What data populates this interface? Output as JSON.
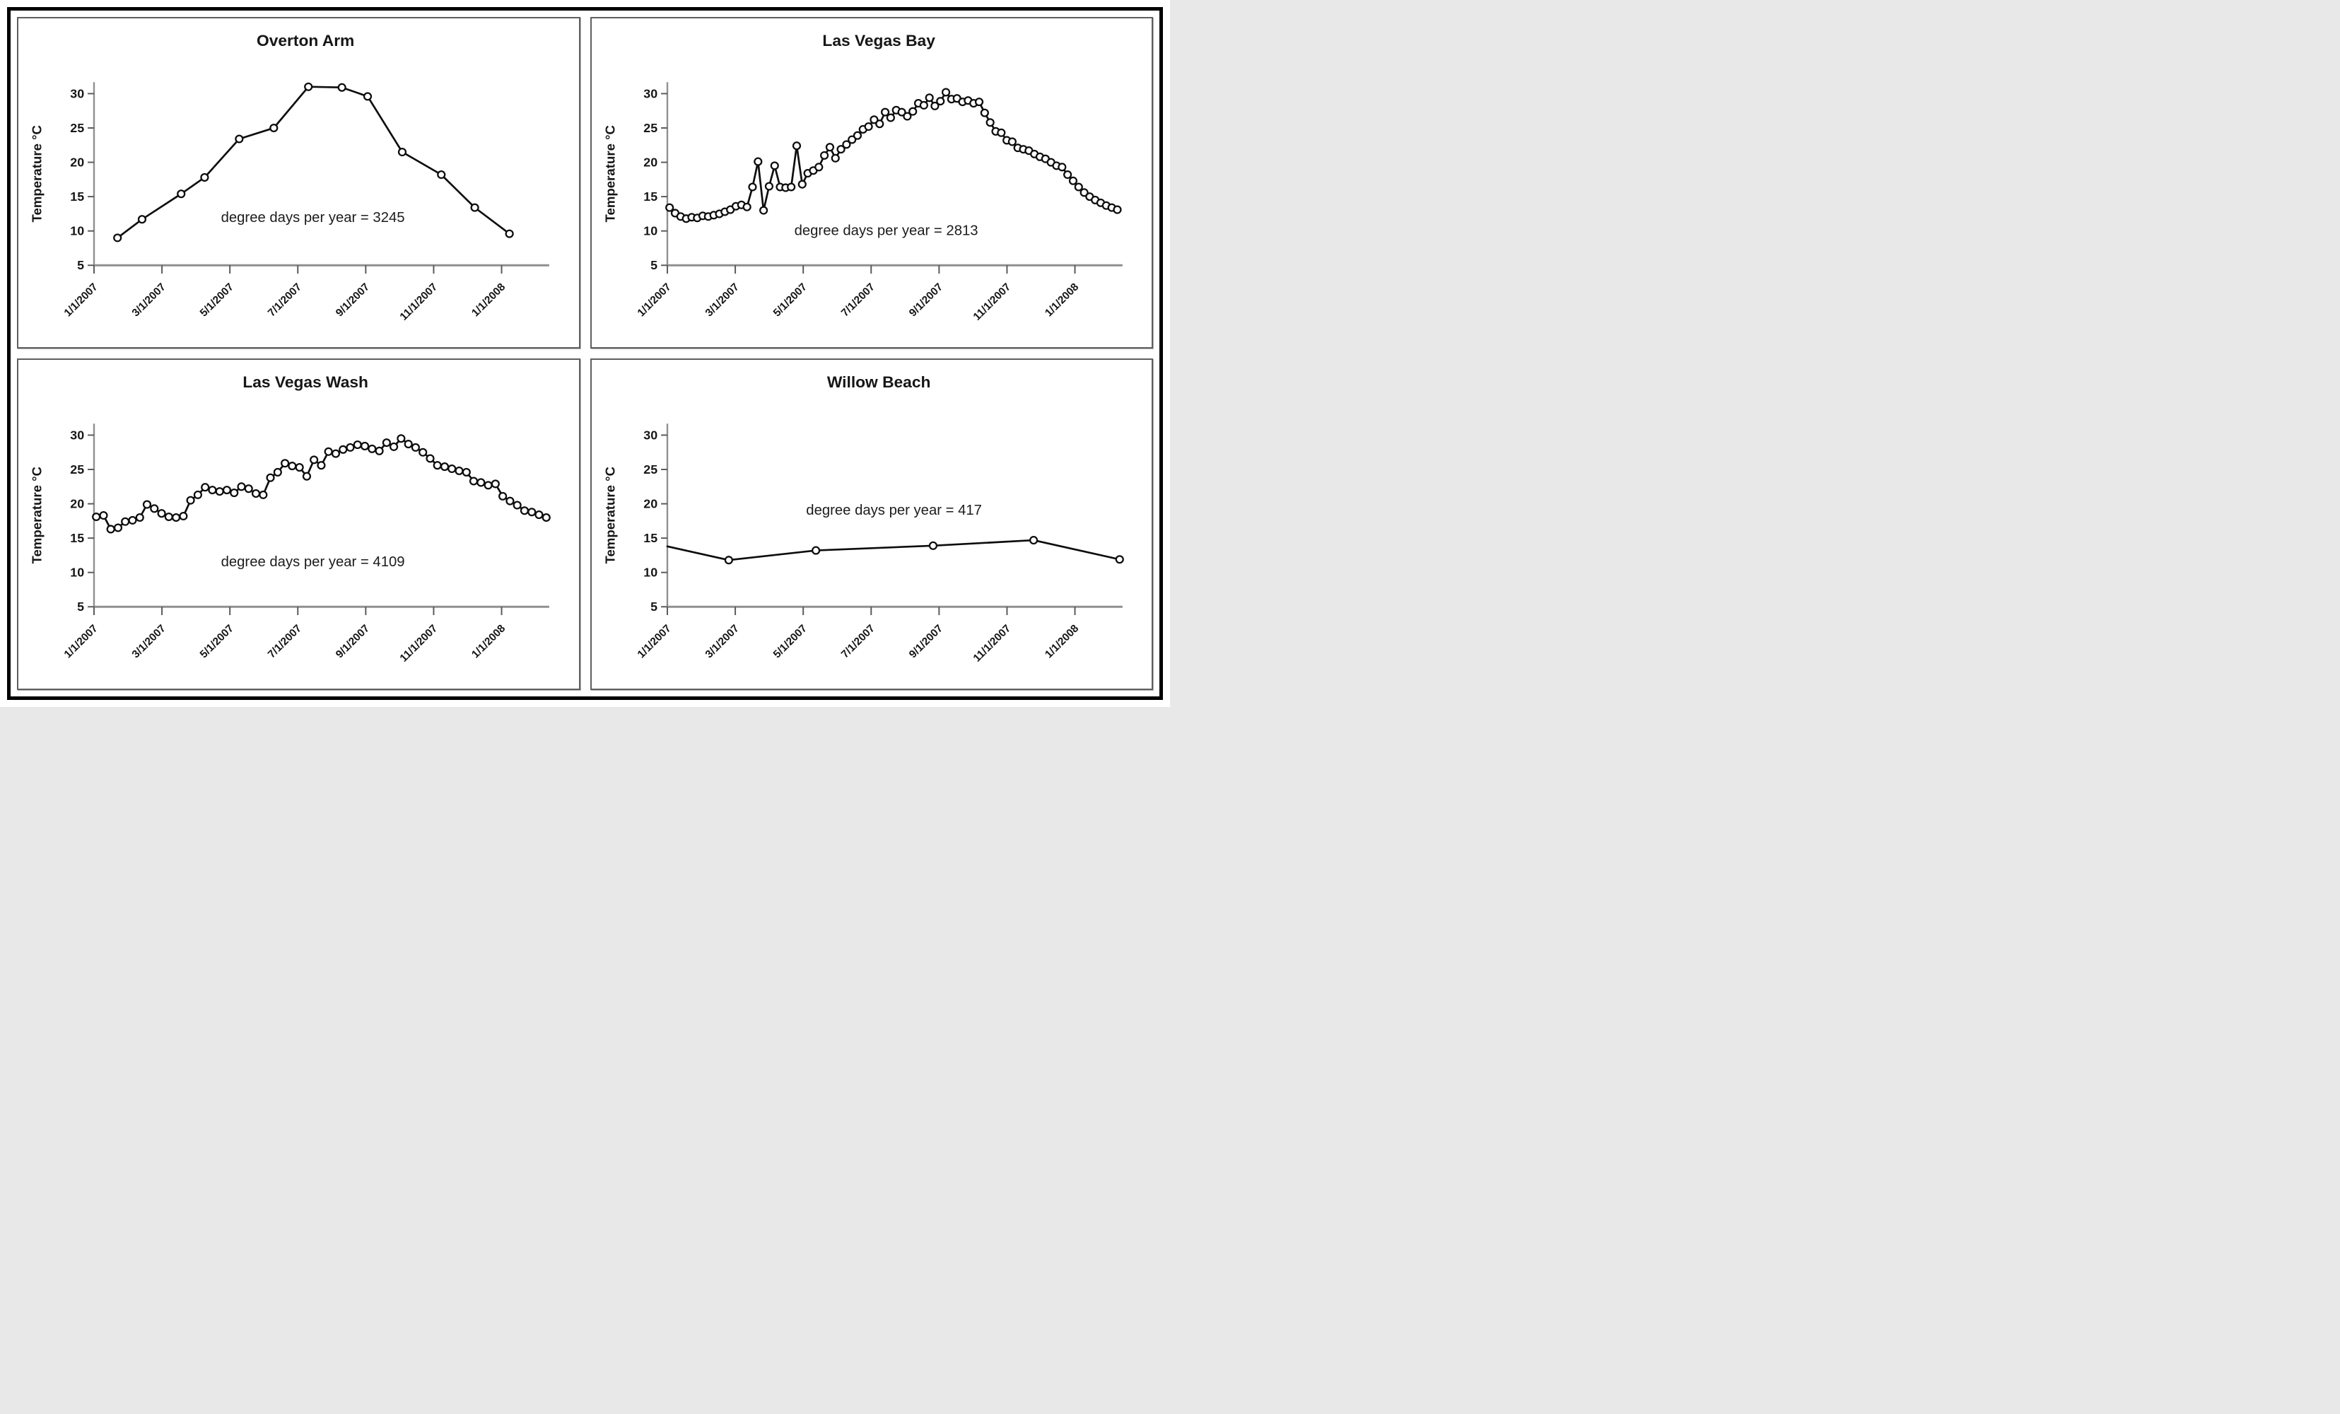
{
  "figure": {
    "description": "Four-panel line chart figure of water temperature time series at Lake Mead / Lake Mohave sites",
    "panel_titles": [
      "Overton Arm",
      "Las Vegas Bay",
      "Las Vegas Wash",
      "Willow Beach"
    ]
  },
  "axis": {
    "x_tick_labels": [
      "1/1/2007",
      "3/1/2007",
      "5/1/2007",
      "7/1/2007",
      "9/1/2007",
      "11/1/2007",
      "1/1/2008"
    ],
    "x_tick_days": [
      0,
      59,
      120,
      181,
      243,
      304,
      365
    ],
    "x_domain_days": [
      0,
      408
    ],
    "y_tick_values": [
      5,
      10,
      15,
      20,
      25,
      30
    ],
    "ylim": [
      5,
      32
    ],
    "y_axis_label": "Temperature °C"
  },
  "style": {
    "series_color": "#0d0d0d",
    "marker_fill": "#ffffff",
    "axis_line_color": "#8f8f8f",
    "tick_color": "#5a5a5a",
    "text_color": "#161616",
    "panel_border_color": "#5f5f5f",
    "outer_border_color": "#000000"
  },
  "chart_data": [
    {
      "id": "overton-arm",
      "type": "line",
      "title": "Overton Arm",
      "ylabel": "Temperature °C",
      "annotation": "degree days per year = 3245",
      "degree_days_per_year": 3245,
      "annotation_pos_day_temp": [
        196,
        11.3
      ],
      "first_marker_visible": true,
      "points_day_temp": [
        [
          21,
          9.0
        ],
        [
          43,
          11.7
        ],
        [
          78,
          15.4
        ],
        [
          99,
          17.8
        ],
        [
          130,
          23.4
        ],
        [
          161,
          25.0
        ],
        [
          192,
          31.0
        ],
        [
          222,
          30.9
        ],
        [
          245,
          29.6
        ],
        [
          276,
          21.5
        ],
        [
          311,
          18.2
        ],
        [
          341,
          13.4
        ],
        [
          372,
          9.6
        ]
      ]
    },
    {
      "id": "las-vegas-bay",
      "type": "line",
      "title": "Las Vegas Bay",
      "ylabel": "Temperature °C",
      "annotation": "degree days per year = 2813",
      "degree_days_per_year": 2813,
      "annotation_pos_day_temp": [
        196,
        9.4
      ],
      "first_marker_visible": true,
      "start_day": 2,
      "step_days": 4.95,
      "temps": [
        13.4,
        12.6,
        12.1,
        11.8,
        12.0,
        11.9,
        12.2,
        12.1,
        12.3,
        12.5,
        12.8,
        13.1,
        13.6,
        13.8,
        13.5,
        16.4,
        20.1,
        13.0,
        16.5,
        19.5,
        16.4,
        16.3,
        16.4,
        22.4,
        16.8,
        18.4,
        18.8,
        19.3,
        21.0,
        22.2,
        20.6,
        21.9,
        22.6,
        23.3,
        23.9,
        24.8,
        25.2,
        26.2,
        25.6,
        27.3,
        26.5,
        27.6,
        27.3,
        26.7,
        27.4,
        28.6,
        28.3,
        29.4,
        28.2,
        28.9,
        30.2,
        29.2,
        29.3,
        28.8,
        29.0,
        28.6,
        28.8,
        27.2,
        25.8,
        24.5,
        24.3,
        23.2,
        23.0,
        22.1,
        21.9,
        21.7,
        21.2,
        20.8,
        20.5,
        20.0,
        19.5,
        19.3,
        18.2,
        17.3,
        16.4,
        15.6,
        15.0,
        14.5,
        14.1,
        13.7,
        13.4,
        13.1
      ]
    },
    {
      "id": "las-vegas-wash",
      "type": "line",
      "title": "Las Vegas Wash",
      "ylabel": "Temperature °C",
      "annotation": "degree days per year = 4109",
      "degree_days_per_year": 4109,
      "annotation_pos_day_temp": [
        196,
        10.9
      ],
      "first_marker_visible": true,
      "start_day": 2,
      "step_days": 6.5,
      "temps": [
        18.1,
        18.3,
        16.3,
        16.5,
        17.4,
        17.6,
        18.0,
        19.9,
        19.3,
        18.6,
        18.1,
        18.0,
        18.2,
        20.5,
        21.3,
        22.4,
        22.0,
        21.8,
        22.0,
        21.6,
        22.5,
        22.2,
        21.5,
        21.3,
        23.8,
        24.6,
        25.9,
        25.5,
        25.3,
        24.0,
        26.4,
        25.6,
        27.6,
        27.3,
        27.9,
        28.2,
        28.6,
        28.4,
        28.0,
        27.7,
        28.9,
        28.3,
        29.5,
        28.7,
        28.2,
        27.5,
        26.6,
        25.6,
        25.4,
        25.1,
        24.8,
        24.6,
        23.3,
        23.1,
        22.7,
        22.9,
        21.1,
        20.4,
        19.8,
        19.0,
        18.8,
        18.4,
        18.0
      ]
    },
    {
      "id": "willow-beach",
      "type": "line",
      "title": "Willow Beach",
      "ylabel": "Temperature °C",
      "annotation": "degree days per year = 417",
      "degree_days_per_year": 417,
      "annotation_pos_day_temp": [
        203,
        18.4
      ],
      "first_marker_visible": false,
      "points_day_temp": [
        [
          0,
          13.8
        ],
        [
          55,
          11.8
        ],
        [
          133,
          13.2
        ],
        [
          238,
          13.9
        ],
        [
          328,
          14.7
        ],
        [
          405,
          11.9
        ]
      ]
    }
  ]
}
